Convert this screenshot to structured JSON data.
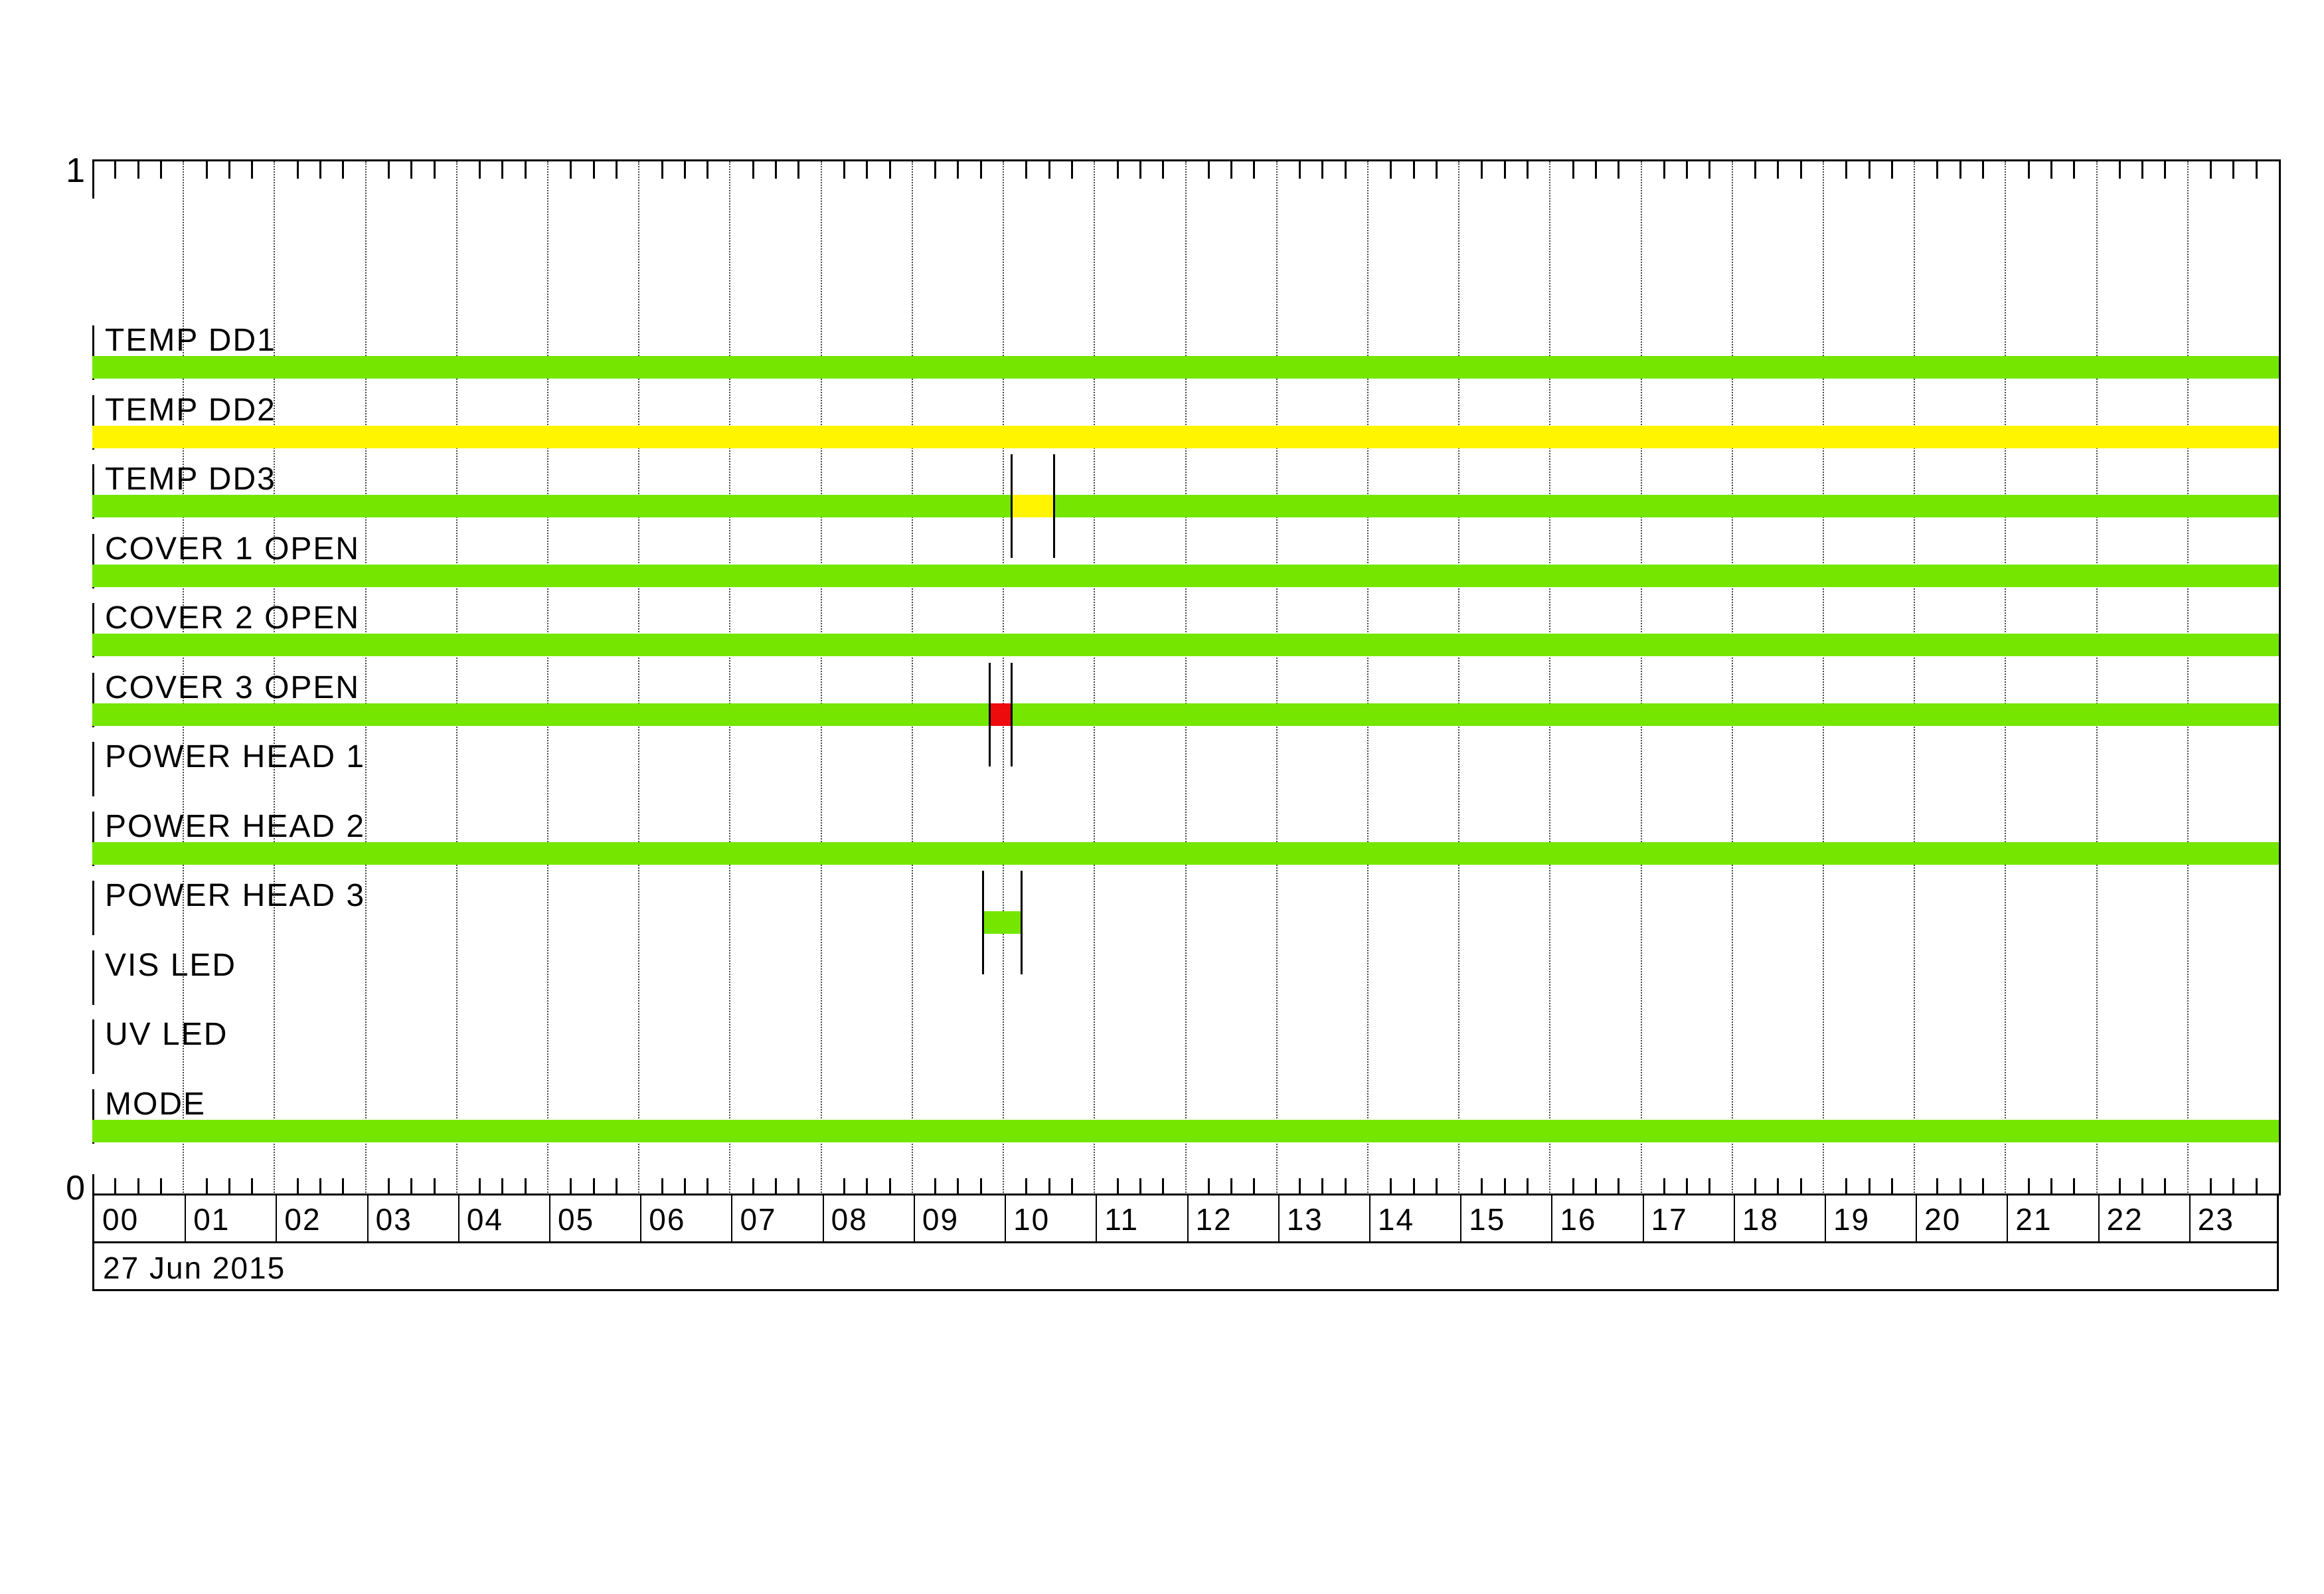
{
  "chart_data": {
    "type": "bar",
    "variant": "status-timeline",
    "title": "",
    "date": "27 Jun 2015",
    "y_axis": {
      "top_label": "1",
      "bottom_label": "0"
    },
    "x_axis": {
      "unit": "hours",
      "min": 0,
      "max": 24,
      "grid_interval_hours": 1,
      "minor_tick_minutes": 15,
      "hour_labels": [
        "00",
        "01",
        "02",
        "03",
        "04",
        "05",
        "06",
        "07",
        "08",
        "09",
        "10",
        "11",
        "12",
        "13",
        "14",
        "15",
        "16",
        "17",
        "18",
        "19",
        "20",
        "21",
        "22",
        "23"
      ]
    },
    "status_colors": {
      "green": "#74E600",
      "yellow": "#FFF500",
      "red": "#EE0B0B"
    },
    "rows": [
      {
        "label": "TEMP DD1",
        "segments": [
          {
            "start": 0,
            "end": 24,
            "color": "green"
          }
        ],
        "markers": []
      },
      {
        "label": "TEMP DD2",
        "segments": [
          {
            "start": 0,
            "end": 24,
            "color": "yellow"
          }
        ],
        "markers": []
      },
      {
        "label": "TEMP DD3",
        "segments": [
          {
            "start": 0,
            "end": 24,
            "color": "green"
          },
          {
            "start": 10.09,
            "end": 10.56,
            "color": "yellow"
          }
        ],
        "markers": [
          10.09,
          10.56
        ]
      },
      {
        "label": "COVER 1 OPEN",
        "segments": [
          {
            "start": 0,
            "end": 24,
            "color": "green"
          }
        ],
        "markers": []
      },
      {
        "label": "COVER 2 OPEN",
        "segments": [
          {
            "start": 0,
            "end": 24,
            "color": "green"
          }
        ],
        "markers": []
      },
      {
        "label": "COVER 3 OPEN",
        "segments": [
          {
            "start": 0,
            "end": 24,
            "color": "green"
          },
          {
            "start": 9.85,
            "end": 10.09,
            "color": "red"
          }
        ],
        "markers": [
          9.85,
          10.09
        ]
      },
      {
        "label": "POWER HEAD 1",
        "segments": [],
        "markers": []
      },
      {
        "label": "POWER HEAD 2",
        "segments": [
          {
            "start": 0,
            "end": 24,
            "color": "green"
          }
        ],
        "markers": []
      },
      {
        "label": "POWER HEAD 3",
        "segments": [
          {
            "start": 9.78,
            "end": 10.2,
            "color": "green"
          }
        ],
        "markers": [
          9.78,
          10.2
        ]
      },
      {
        "label": "VIS LED",
        "segments": [],
        "markers": []
      },
      {
        "label": "UV LED",
        "segments": [],
        "markers": []
      },
      {
        "label": "MODE",
        "segments": [
          {
            "start": 0,
            "end": 24,
            "color": "green"
          }
        ],
        "markers": []
      }
    ]
  }
}
